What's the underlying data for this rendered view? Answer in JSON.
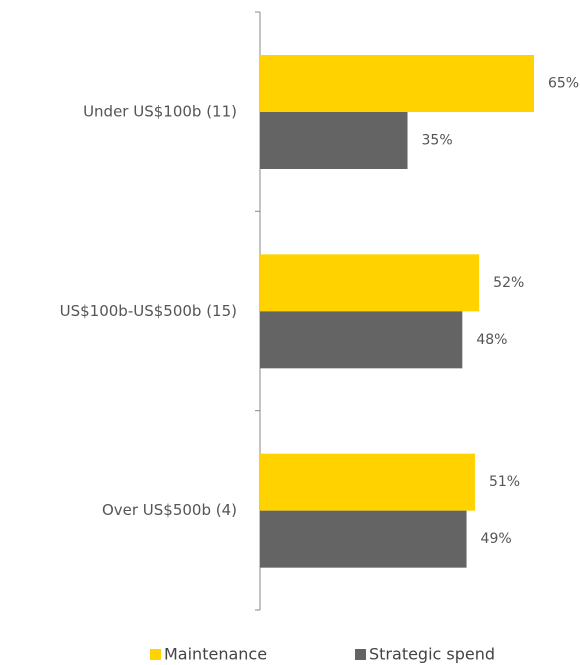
{
  "chart_data": {
    "type": "bar",
    "orientation": "horizontal",
    "categories": [
      "Under US$100b (11)",
      "US$100b-US$500b (15)",
      "Over US$500b (4)"
    ],
    "series": [
      {
        "name": "Maintenance",
        "color": "#ffd200",
        "values": [
          65,
          52,
          51
        ],
        "value_labels": [
          "65%",
          "52%",
          "51%"
        ]
      },
      {
        "name": "Strategic spend",
        "color": "#646464",
        "values": [
          35,
          48,
          49
        ],
        "value_labels": [
          "35%",
          "48%",
          "49%"
        ]
      }
    ]
  }
}
